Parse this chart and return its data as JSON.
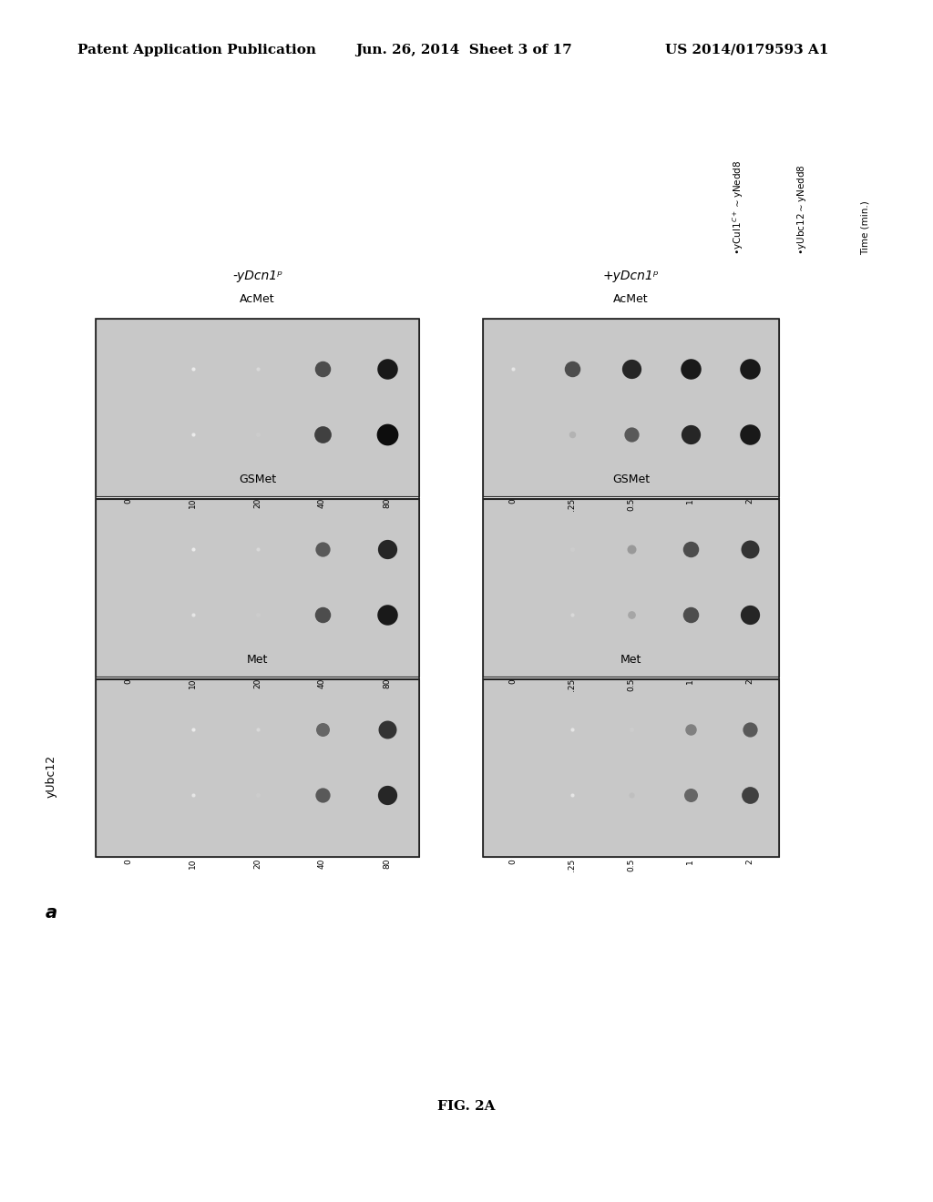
{
  "title_line1": "Patent Application Publication",
  "title_line2": "Jun. 26, 2014  Sheet 3 of 17",
  "title_line3": "US 2014/0179593 A1",
  "fig_label": "FIG. 2A",
  "panel_label": "a",
  "y_label": "yUbc12",
  "bg_color": "#ffffff",
  "rotated_labels": [
    "•yCul1ᶜ⁺∾yNedd8",
    "•yUbc12∾yNedd8",
    "Time (min.)"
  ],
  "minus_dcn1_groups": [
    "Met",
    "GSMet",
    "AcMet"
  ],
  "plus_dcn1_groups": [
    "Met",
    "GSMet",
    "AcMet"
  ],
  "minus_dcn1_time": [
    "0",
    "10",
    "20",
    "40",
    "80"
  ],
  "plus_dcn1_time": [
    "0",
    ".25",
    "0.5",
    "1",
    "2"
  ],
  "minus_dcn1_label": "-yDcn1ᵖ",
  "plus_dcn1_label": "+yDcn1ᵖ",
  "gel_bg": "#e8e8e8",
  "band_dark": "#1a1a1a",
  "band_mid": "#555555",
  "band_light": "#999999",
  "band_vlight": "#cccccc"
}
